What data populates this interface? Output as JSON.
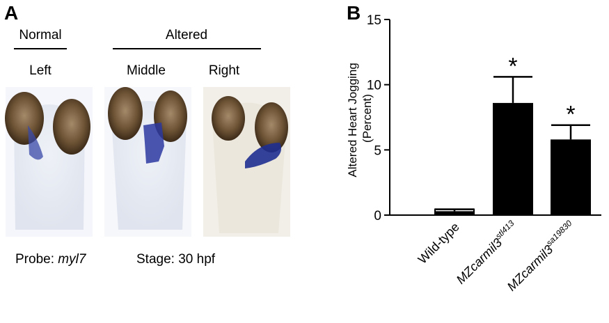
{
  "panel_a": {
    "label": "A",
    "groups": [
      "Normal",
      "Altered"
    ],
    "columns": [
      "Left",
      "Middle",
      "Right"
    ],
    "probe": {
      "label": "Probe:",
      "value": "myl7"
    },
    "stage": {
      "label": "Stage:",
      "value": "30 hpf"
    }
  },
  "chart_data": {
    "type": "bar",
    "panel_label": "B",
    "y_label": [
      "Altered Heart Jogging",
      "(Percent)"
    ],
    "categories": [
      [
        "Wild-type"
      ],
      [
        "MZcarmil3",
        "stl413"
      ],
      [
        "MZcarmil3",
        "sa19830"
      ]
    ],
    "values": [
      0.3,
      8.6,
      5.8
    ],
    "errors": [
      0.15,
      2.0,
      1.1
    ],
    "significance": [
      null,
      "*",
      "*"
    ],
    "color": "#000000",
    "ylim": [
      0,
      15
    ],
    "yticks": [
      0,
      5,
      10,
      15
    ],
    "grid": false
  }
}
